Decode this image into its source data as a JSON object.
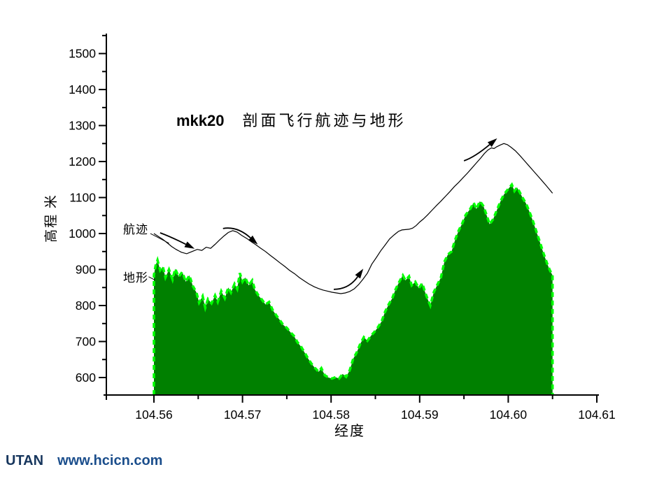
{
  "watermark": {
    "brand": "UTAN",
    "site": "www.hcicn.com"
  },
  "chart_data": {
    "type": "area+line",
    "title_prefix": "mkk20",
    "title": "剖面飞行航迹与地形",
    "xlabel": "经度",
    "ylabel": "高程 米",
    "xlim": [
      104.5546,
      104.6102
    ],
    "ylim": [
      551,
      1560
    ],
    "grid": false,
    "x_major_ticks": [
      104.56,
      104.57,
      104.58,
      104.59,
      104.6,
      104.61
    ],
    "x_tick_labels": [
      "104.56",
      "104.57",
      "104.58",
      "104.59",
      "104.60",
      "104.61"
    ],
    "x_minor_ticks": [
      104.565,
      104.575,
      104.585,
      104.595,
      104.605
    ],
    "y_major_ticks": [
      600,
      700,
      800,
      900,
      1000,
      1100,
      1200,
      1300,
      1400,
      1500
    ],
    "y_tick_labels": [
      "600",
      "700",
      "800",
      "900",
      "1000",
      "1100",
      "1200",
      "1300",
      "1400",
      "1500"
    ],
    "y_minor_ticks": [
      650,
      750,
      850,
      950,
      1050,
      1150,
      1250,
      1350,
      1450,
      1550
    ],
    "series": [
      {
        "name": "航迹",
        "type": "line",
        "color": "#000000",
        "points": [
          [
            104.56,
            1000
          ],
          [
            104.5605,
            992
          ],
          [
            104.561,
            984
          ],
          [
            104.5615,
            974
          ],
          [
            104.562,
            964
          ],
          [
            104.5625,
            956
          ],
          [
            104.5631,
            948
          ],
          [
            104.5637,
            944
          ],
          [
            104.5643,
            950
          ],
          [
            104.5649,
            956
          ],
          [
            104.5654,
            953
          ],
          [
            104.5659,
            962
          ],
          [
            104.5664,
            959
          ],
          [
            104.5669,
            970
          ],
          [
            104.5674,
            982
          ],
          [
            104.5679,
            993
          ],
          [
            104.5684,
            1003
          ],
          [
            104.5689,
            1008
          ],
          [
            104.5694,
            1004
          ],
          [
            104.5699,
            995
          ],
          [
            104.5705,
            986
          ],
          [
            104.571,
            977
          ],
          [
            104.5715,
            969
          ],
          [
            104.572,
            960
          ],
          [
            104.5726,
            950
          ],
          [
            104.5731,
            940
          ],
          [
            104.5737,
            929
          ],
          [
            104.5742,
            919
          ],
          [
            104.5748,
            908
          ],
          [
            104.5753,
            898
          ],
          [
            104.5759,
            888
          ],
          [
            104.5764,
            878
          ],
          [
            104.577,
            868
          ],
          [
            104.5775,
            860
          ],
          [
            104.5781,
            852
          ],
          [
            104.5786,
            847
          ],
          [
            104.5791,
            843
          ],
          [
            104.5796,
            840
          ],
          [
            104.5801,
            837
          ],
          [
            104.5806,
            835
          ],
          [
            104.5811,
            833
          ],
          [
            104.5816,
            835
          ],
          [
            104.5821,
            839
          ],
          [
            104.5826,
            846
          ],
          [
            104.5831,
            858
          ],
          [
            104.5836,
            873
          ],
          [
            104.5841,
            890
          ],
          [
            104.5846,
            915
          ],
          [
            104.5851,
            933
          ],
          [
            104.5856,
            952
          ],
          [
            104.5861,
            968
          ],
          [
            104.5866,
            985
          ],
          [
            104.5871,
            996
          ],
          [
            104.5876,
            1006
          ],
          [
            104.588,
            1010
          ],
          [
            104.5884,
            1011
          ],
          [
            104.5888,
            1012
          ],
          [
            104.5892,
            1015
          ],
          [
            104.5896,
            1022
          ],
          [
            104.59,
            1032
          ],
          [
            104.5904,
            1040
          ],
          [
            104.5909,
            1052
          ],
          [
            104.5914,
            1065
          ],
          [
            104.5919,
            1078
          ],
          [
            104.5924,
            1090
          ],
          [
            104.5929,
            1103
          ],
          [
            104.5934,
            1116
          ],
          [
            104.5939,
            1130
          ],
          [
            104.5944,
            1142
          ],
          [
            104.5949,
            1155
          ],
          [
            104.5954,
            1168
          ],
          [
            104.5959,
            1182
          ],
          [
            104.5964,
            1196
          ],
          [
            104.5969,
            1210
          ],
          [
            104.5973,
            1222
          ],
          [
            104.5977,
            1232
          ],
          [
            104.5981,
            1238
          ],
          [
            104.5984,
            1236
          ],
          [
            104.5987,
            1241
          ],
          [
            104.5991,
            1246
          ],
          [
            104.5995,
            1250
          ],
          [
            104.5999,
            1247
          ],
          [
            104.6003,
            1240
          ],
          [
            104.6008,
            1230
          ],
          [
            104.6013,
            1217
          ],
          [
            104.6018,
            1203
          ],
          [
            104.6023,
            1189
          ],
          [
            104.6028,
            1175
          ],
          [
            104.6033,
            1161
          ],
          [
            104.6038,
            1147
          ],
          [
            104.6043,
            1133
          ],
          [
            104.6047,
            1121
          ],
          [
            104.605,
            1112
          ]
        ]
      },
      {
        "name": "地形",
        "type": "area",
        "fill_color": "#008000",
        "edge_color": "#00ff00",
        "edge_style": "dashed",
        "points": [
          [
            104.56,
            885
          ],
          [
            104.5602,
            912
          ],
          [
            104.5604,
            926
          ],
          [
            104.5607,
            898
          ],
          [
            104.561,
            908
          ],
          [
            104.5613,
            878
          ],
          [
            104.5617,
            900
          ],
          [
            104.5621,
            872
          ],
          [
            104.5624,
            902
          ],
          [
            104.5628,
            880
          ],
          [
            104.5632,
            893
          ],
          [
            104.5636,
            866
          ],
          [
            104.564,
            884
          ],
          [
            104.5644,
            854
          ],
          [
            104.5648,
            836
          ],
          [
            104.5651,
            808
          ],
          [
            104.5655,
            826
          ],
          [
            104.5658,
            794
          ],
          [
            104.5661,
            818
          ],
          [
            104.5665,
            806
          ],
          [
            104.5669,
            828
          ],
          [
            104.5672,
            810
          ],
          [
            104.5676,
            840
          ],
          [
            104.568,
            820
          ],
          [
            104.5684,
            850
          ],
          [
            104.5687,
            836
          ],
          [
            104.5691,
            860
          ],
          [
            104.5694,
            846
          ],
          [
            104.5697,
            890
          ],
          [
            104.57,
            866
          ],
          [
            104.5703,
            878
          ],
          [
            104.5707,
            856
          ],
          [
            104.5711,
            870
          ],
          [
            104.5714,
            844
          ],
          [
            104.5718,
            828
          ],
          [
            104.5722,
            816
          ],
          [
            104.5726,
            803
          ],
          [
            104.573,
            810
          ],
          [
            104.5734,
            788
          ],
          [
            104.5738,
            773
          ],
          [
            104.5742,
            760
          ],
          [
            104.5746,
            746
          ],
          [
            104.575,
            738
          ],
          [
            104.5754,
            726
          ],
          [
            104.5758,
            716
          ],
          [
            104.5762,
            698
          ],
          [
            104.5766,
            686
          ],
          [
            104.577,
            670
          ],
          [
            104.5774,
            653
          ],
          [
            104.5778,
            638
          ],
          [
            104.5782,
            626
          ],
          [
            104.5786,
            616
          ],
          [
            104.5789,
            626
          ],
          [
            104.5793,
            606
          ],
          [
            104.5797,
            600
          ],
          [
            104.5801,
            597
          ],
          [
            104.5805,
            601
          ],
          [
            104.5809,
            597
          ],
          [
            104.5813,
            610
          ],
          [
            104.5817,
            602
          ],
          [
            104.5821,
            620
          ],
          [
            104.5825,
            652
          ],
          [
            104.5829,
            670
          ],
          [
            104.5833,
            694
          ],
          [
            104.5837,
            712
          ],
          [
            104.5841,
            702
          ],
          [
            104.5845,
            716
          ],
          [
            104.5849,
            727
          ],
          [
            104.5853,
            740
          ],
          [
            104.5857,
            756
          ],
          [
            104.5861,
            783
          ],
          [
            104.5865,
            803
          ],
          [
            104.5869,
            820
          ],
          [
            104.5873,
            846
          ],
          [
            104.5877,
            866
          ],
          [
            104.5881,
            884
          ],
          [
            104.5884,
            870
          ],
          [
            104.5888,
            881
          ],
          [
            104.5891,
            856
          ],
          [
            104.5895,
            866
          ],
          [
            104.5899,
            848
          ],
          [
            104.5903,
            862
          ],
          [
            104.5906,
            838
          ],
          [
            104.5909,
            818
          ],
          [
            104.5912,
            800
          ],
          [
            104.5916,
            838
          ],
          [
            104.592,
            858
          ],
          [
            104.5924,
            878
          ],
          [
            104.5928,
            922
          ],
          [
            104.5932,
            942
          ],
          [
            104.5936,
            950
          ],
          [
            104.594,
            982
          ],
          [
            104.5944,
            1008
          ],
          [
            104.5948,
            1028
          ],
          [
            104.5952,
            1052
          ],
          [
            104.5957,
            1068
          ],
          [
            104.5961,
            1086
          ],
          [
            104.5964,
            1068
          ],
          [
            104.5968,
            1090
          ],
          [
            104.5972,
            1076
          ],
          [
            104.5976,
            1048
          ],
          [
            104.5979,
            1026
          ],
          [
            104.5983,
            1040
          ],
          [
            104.5987,
            1064
          ],
          [
            104.5991,
            1088
          ],
          [
            104.5995,
            1108
          ],
          [
            104.6,
            1124
          ],
          [
            104.6004,
            1136
          ],
          [
            104.6007,
            1118
          ],
          [
            104.601,
            1128
          ],
          [
            104.6014,
            1110
          ],
          [
            104.6017,
            1096
          ],
          [
            104.602,
            1084
          ],
          [
            104.6024,
            1060
          ],
          [
            104.6028,
            1034
          ],
          [
            104.6032,
            1004
          ],
          [
            104.6036,
            974
          ],
          [
            104.604,
            944
          ],
          [
            104.6044,
            916
          ],
          [
            104.6047,
            898
          ],
          [
            104.605,
            884
          ]
        ]
      }
    ],
    "annotations": {
      "series_labels": [
        {
          "text": "航迹",
          "target": "track"
        },
        {
          "text": "地形",
          "target": "terrain"
        }
      ],
      "leaders": [
        {
          "from": [
            104.5596,
            1000
          ],
          "ctrl": [
            104.5604,
            990
          ],
          "to": [
            104.5617,
            973
          ]
        },
        {
          "from": [
            104.5594,
            880
          ],
          "ctrl": [
            104.5597,
            876
          ],
          "to": [
            104.5601,
            871
          ]
        }
      ],
      "arrows": [
        {
          "tail": [
            104.5607,
            1002
          ],
          "ctrl": [
            104.562,
            990
          ],
          "head": [
            104.5636,
            970
          ]
        },
        {
          "tail": [
            104.5678,
            1014
          ],
          "ctrl": [
            104.5694,
            1021
          ],
          "head": [
            104.5709,
            988
          ]
        },
        {
          "tail": [
            104.5803,
            845
          ],
          "ctrl": [
            104.582,
            845
          ],
          "head": [
            104.583,
            880
          ]
        },
        {
          "tail": [
            104.595,
            1202
          ],
          "ctrl": [
            104.5962,
            1212
          ],
          "head": [
            104.5979,
            1247
          ]
        }
      ]
    }
  }
}
